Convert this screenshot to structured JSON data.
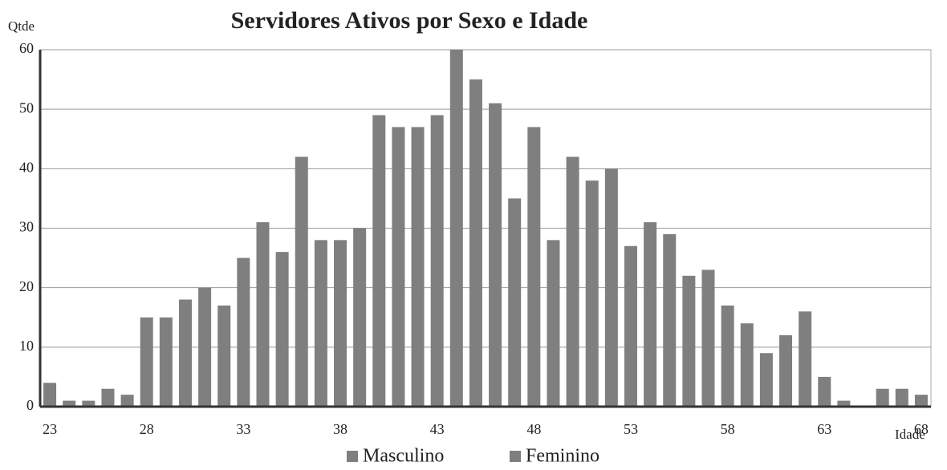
{
  "chart_data": {
    "type": "bar",
    "title": "Servidores Ativos por Sexo e Idade",
    "y_label": "Qtde",
    "x_label": "Idade",
    "categories": [
      23,
      null,
      null,
      null,
      null,
      28,
      null,
      null,
      null,
      null,
      33,
      null,
      null,
      null,
      null,
      38,
      null,
      null,
      null,
      null,
      43,
      null,
      null,
      null,
      null,
      48,
      null,
      null,
      null,
      null,
      53,
      null,
      null,
      null,
      null,
      58,
      null,
      null,
      null,
      null,
      63,
      null,
      null,
      null,
      null,
      68
    ],
    "values": [
      4,
      1,
      1,
      3,
      2,
      15,
      15,
      18,
      20,
      17,
      25,
      31,
      26,
      42,
      28,
      28,
      30,
      49,
      47,
      47,
      49,
      60,
      55,
      51,
      35,
      47,
      28,
      42,
      38,
      40,
      27,
      31,
      29,
      22,
      23,
      17,
      14,
      9,
      12,
      16,
      5,
      1,
      0,
      3,
      3,
      2
    ],
    "color": "#7f7f7f",
    "legend": [
      "Masculino",
      "Feminino"
    ],
    "ylim": [
      0,
      60
    ],
    "yticks": [
      0,
      10,
      20,
      30,
      40,
      50,
      60
    ],
    "grid": true
  }
}
